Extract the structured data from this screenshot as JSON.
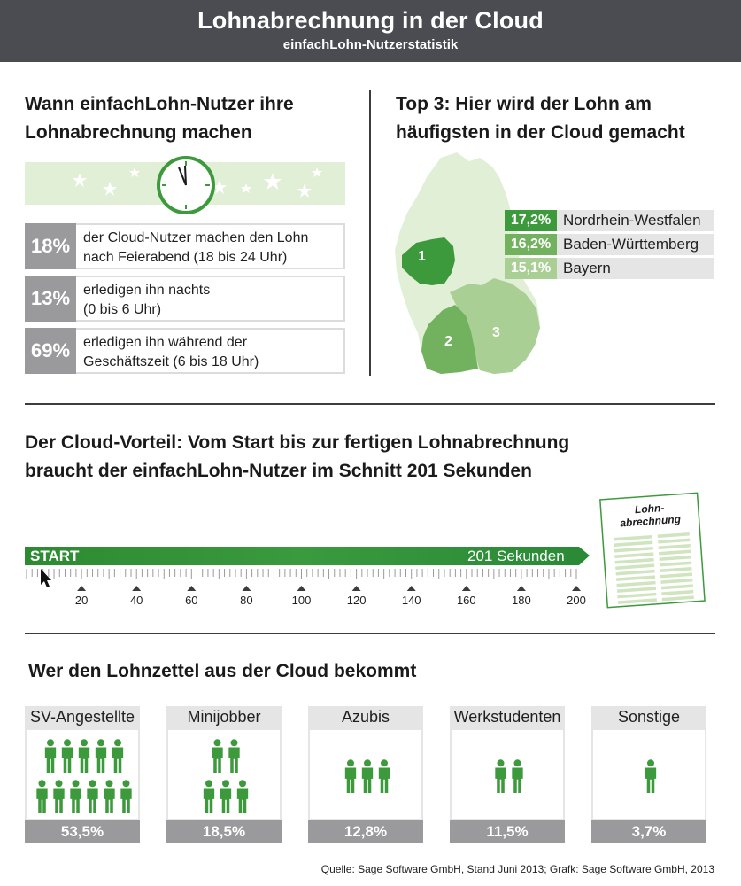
{
  "header": {
    "title": "Lohnabrechnung in der Cloud",
    "subtitle": "einfachLohn-Nutzerstatistik"
  },
  "time_section": {
    "heading_line1": "Wann einfachLohn-Nutzer ihre",
    "heading_line2": "Lohnabrechnung machen",
    "rows": [
      {
        "pct": "18%",
        "line1": "der Cloud-Nutzer machen den Lohn",
        "line2": "nach Feierabend (18 bis 24 Uhr)"
      },
      {
        "pct": "13%",
        "line1": "erledigen ihn nachts",
        "line2": "(0 bis 6 Uhr)"
      },
      {
        "pct": "69%",
        "line1": "erledigen ihn während der",
        "line2": "Geschäftszeit (6 bis 18 Uhr)"
      }
    ]
  },
  "top3_section": {
    "heading_line1": "Top 3: Hier wird der Lohn am",
    "heading_line2": "häufigsten in der Cloud gemacht",
    "regions": [
      {
        "rank": "1",
        "pct": "17,2%",
        "name": "Nordrhein-Westfalen",
        "color": "#3c9a3c"
      },
      {
        "rank": "2",
        "pct": "16,2%",
        "name": "Baden-Württemberg",
        "color": "#72b25f"
      },
      {
        "rank": "3",
        "pct": "15,1%",
        "name": "Bayern",
        "color": "#a9cf94"
      }
    ]
  },
  "cloud_advantage": {
    "heading_line1": "Der Cloud-Vorteil: Vom Start bis zur fertigen Lohnabrechnung",
    "heading_line2": "braucht der einfachLohn-Nutzer im Schnitt 201 Sekunden",
    "start_label": "START",
    "end_label": "201 Sekunden",
    "duration_seconds": 201,
    "axis_labels": [
      "20",
      "40",
      "60",
      "80",
      "100",
      "120",
      "140",
      "160",
      "180",
      "200"
    ],
    "document_label_line1": "Lohn-",
    "document_label_line2": "abrechnung"
  },
  "recipients": {
    "heading": "Wer den Lohnzettel aus der Cloud bekommt",
    "groups": [
      {
        "label": "SV-Angestellte",
        "pct": "53,5%"
      },
      {
        "label": "Minijobber",
        "pct": "18,5%"
      },
      {
        "label": "Azubis",
        "pct": "12,8%"
      },
      {
        "label": "Werkstudenten",
        "pct": "11,5%"
      },
      {
        "label": "Sonstige",
        "pct": "3,7%"
      }
    ]
  },
  "source": "Quelle: Sage Software GmbH, Stand Juni 2013; Grafk: Sage Software GmbH, 2013",
  "colors": {
    "header_bg": "#4a4c51",
    "accent_green": "#3c9a3c",
    "light_green": "#e2efd7",
    "grey_badge": "#9a9a9c"
  }
}
